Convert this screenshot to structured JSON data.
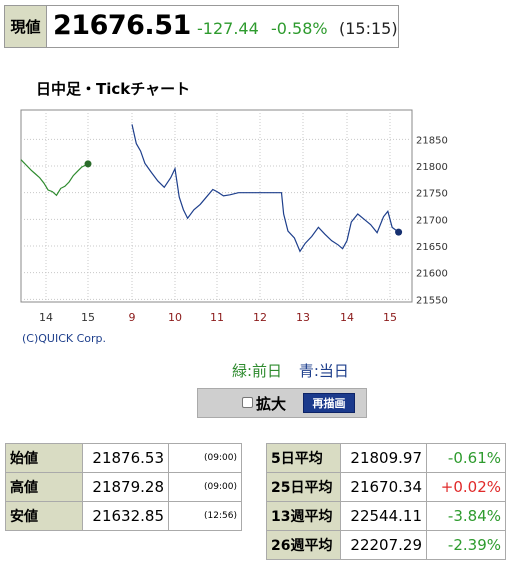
{
  "quote": {
    "label": "現値",
    "price": "21676.51",
    "change": "-127.44",
    "change_pct": "-0.58%",
    "time": "(15:15)"
  },
  "chart_title": "日中足・Tickチャート",
  "chart_data": {
    "type": "line",
    "title": "日中足・Tickチャート",
    "x_ticks": [
      "14",
      "15",
      "9",
      "10",
      "11",
      "12",
      "13",
      "14",
      "15"
    ],
    "y_ticks": [
      21550,
      21600,
      21650,
      21700,
      21750,
      21800,
      21850
    ],
    "ylim": [
      21545,
      21905
    ],
    "grid": true,
    "legend_position": "bottom-right",
    "series": [
      {
        "name": "前日",
        "color": "#2e8b2e",
        "points": [
          [
            13.35,
            21812
          ],
          [
            13.45,
            21808
          ],
          [
            13.55,
            21800
          ],
          [
            13.65,
            21792
          ],
          [
            13.75,
            21785
          ],
          [
            13.85,
            21778
          ],
          [
            13.95,
            21768
          ],
          [
            14.05,
            21755
          ],
          [
            14.15,
            21752
          ],
          [
            14.25,
            21745
          ],
          [
            14.35,
            21758
          ],
          [
            14.45,
            21762
          ],
          [
            14.55,
            21770
          ],
          [
            14.65,
            21782
          ],
          [
            14.75,
            21790
          ],
          [
            14.85,
            21798
          ],
          [
            15.0,
            21804
          ]
        ]
      },
      {
        "name": "当日",
        "color": "#1e3f8c",
        "points": [
          [
            9.0,
            21878
          ],
          [
            9.1,
            21842
          ],
          [
            9.2,
            21828
          ],
          [
            9.3,
            21805
          ],
          [
            9.45,
            21788
          ],
          [
            9.6,
            21772
          ],
          [
            9.75,
            21760
          ],
          [
            9.9,
            21778
          ],
          [
            10.0,
            21795
          ],
          [
            10.1,
            21742
          ],
          [
            10.2,
            21718
          ],
          [
            10.3,
            21702
          ],
          [
            10.45,
            21718
          ],
          [
            10.6,
            21728
          ],
          [
            10.75,
            21742
          ],
          [
            10.9,
            21756
          ],
          [
            11.0,
            21752
          ],
          [
            11.15,
            21744
          ],
          [
            11.3,
            21746
          ],
          [
            11.5,
            21750
          ],
          [
            12.5,
            21750
          ],
          [
            12.55,
            21710
          ],
          [
            12.65,
            21678
          ],
          [
            12.8,
            21665
          ],
          [
            12.93,
            21640
          ],
          [
            13.05,
            21655
          ],
          [
            13.2,
            21668
          ],
          [
            13.35,
            21685
          ],
          [
            13.5,
            21672
          ],
          [
            13.65,
            21660
          ],
          [
            13.8,
            21652
          ],
          [
            13.9,
            21645
          ],
          [
            14.0,
            21660
          ],
          [
            14.1,
            21695
          ],
          [
            14.25,
            21710
          ],
          [
            14.4,
            21700
          ],
          [
            14.55,
            21690
          ],
          [
            14.7,
            21675
          ],
          [
            14.85,
            21705
          ],
          [
            14.95,
            21715
          ],
          [
            15.05,
            21685
          ],
          [
            15.2,
            21676
          ]
        ]
      }
    ]
  },
  "credit": "(C)QUICK Corp.",
  "legend": {
    "prev": "緑:前日",
    "curr": "青:当日"
  },
  "controls": {
    "zoom_label": "拡大",
    "redraw_button": "再描画"
  },
  "prices_table": [
    {
      "label": "始値",
      "value": "21876.53",
      "time": "(09:00)"
    },
    {
      "label": "高値",
      "value": "21879.28",
      "time": "(09:00)"
    },
    {
      "label": "安値",
      "value": "21632.85",
      "time": "(12:56)"
    }
  ],
  "averages_table": [
    {
      "label": "5日平均",
      "value": "21809.97",
      "change": "-0.61%",
      "color": "green"
    },
    {
      "label": "25日平均",
      "value": "21670.34",
      "change": "+0.02%",
      "color": "red"
    },
    {
      "label": "13週平均",
      "value": "22544.11",
      "change": "-3.84%",
      "color": "green"
    },
    {
      "label": "26週平均",
      "value": "22207.29",
      "change": "-2.39%",
      "color": "green"
    }
  ]
}
